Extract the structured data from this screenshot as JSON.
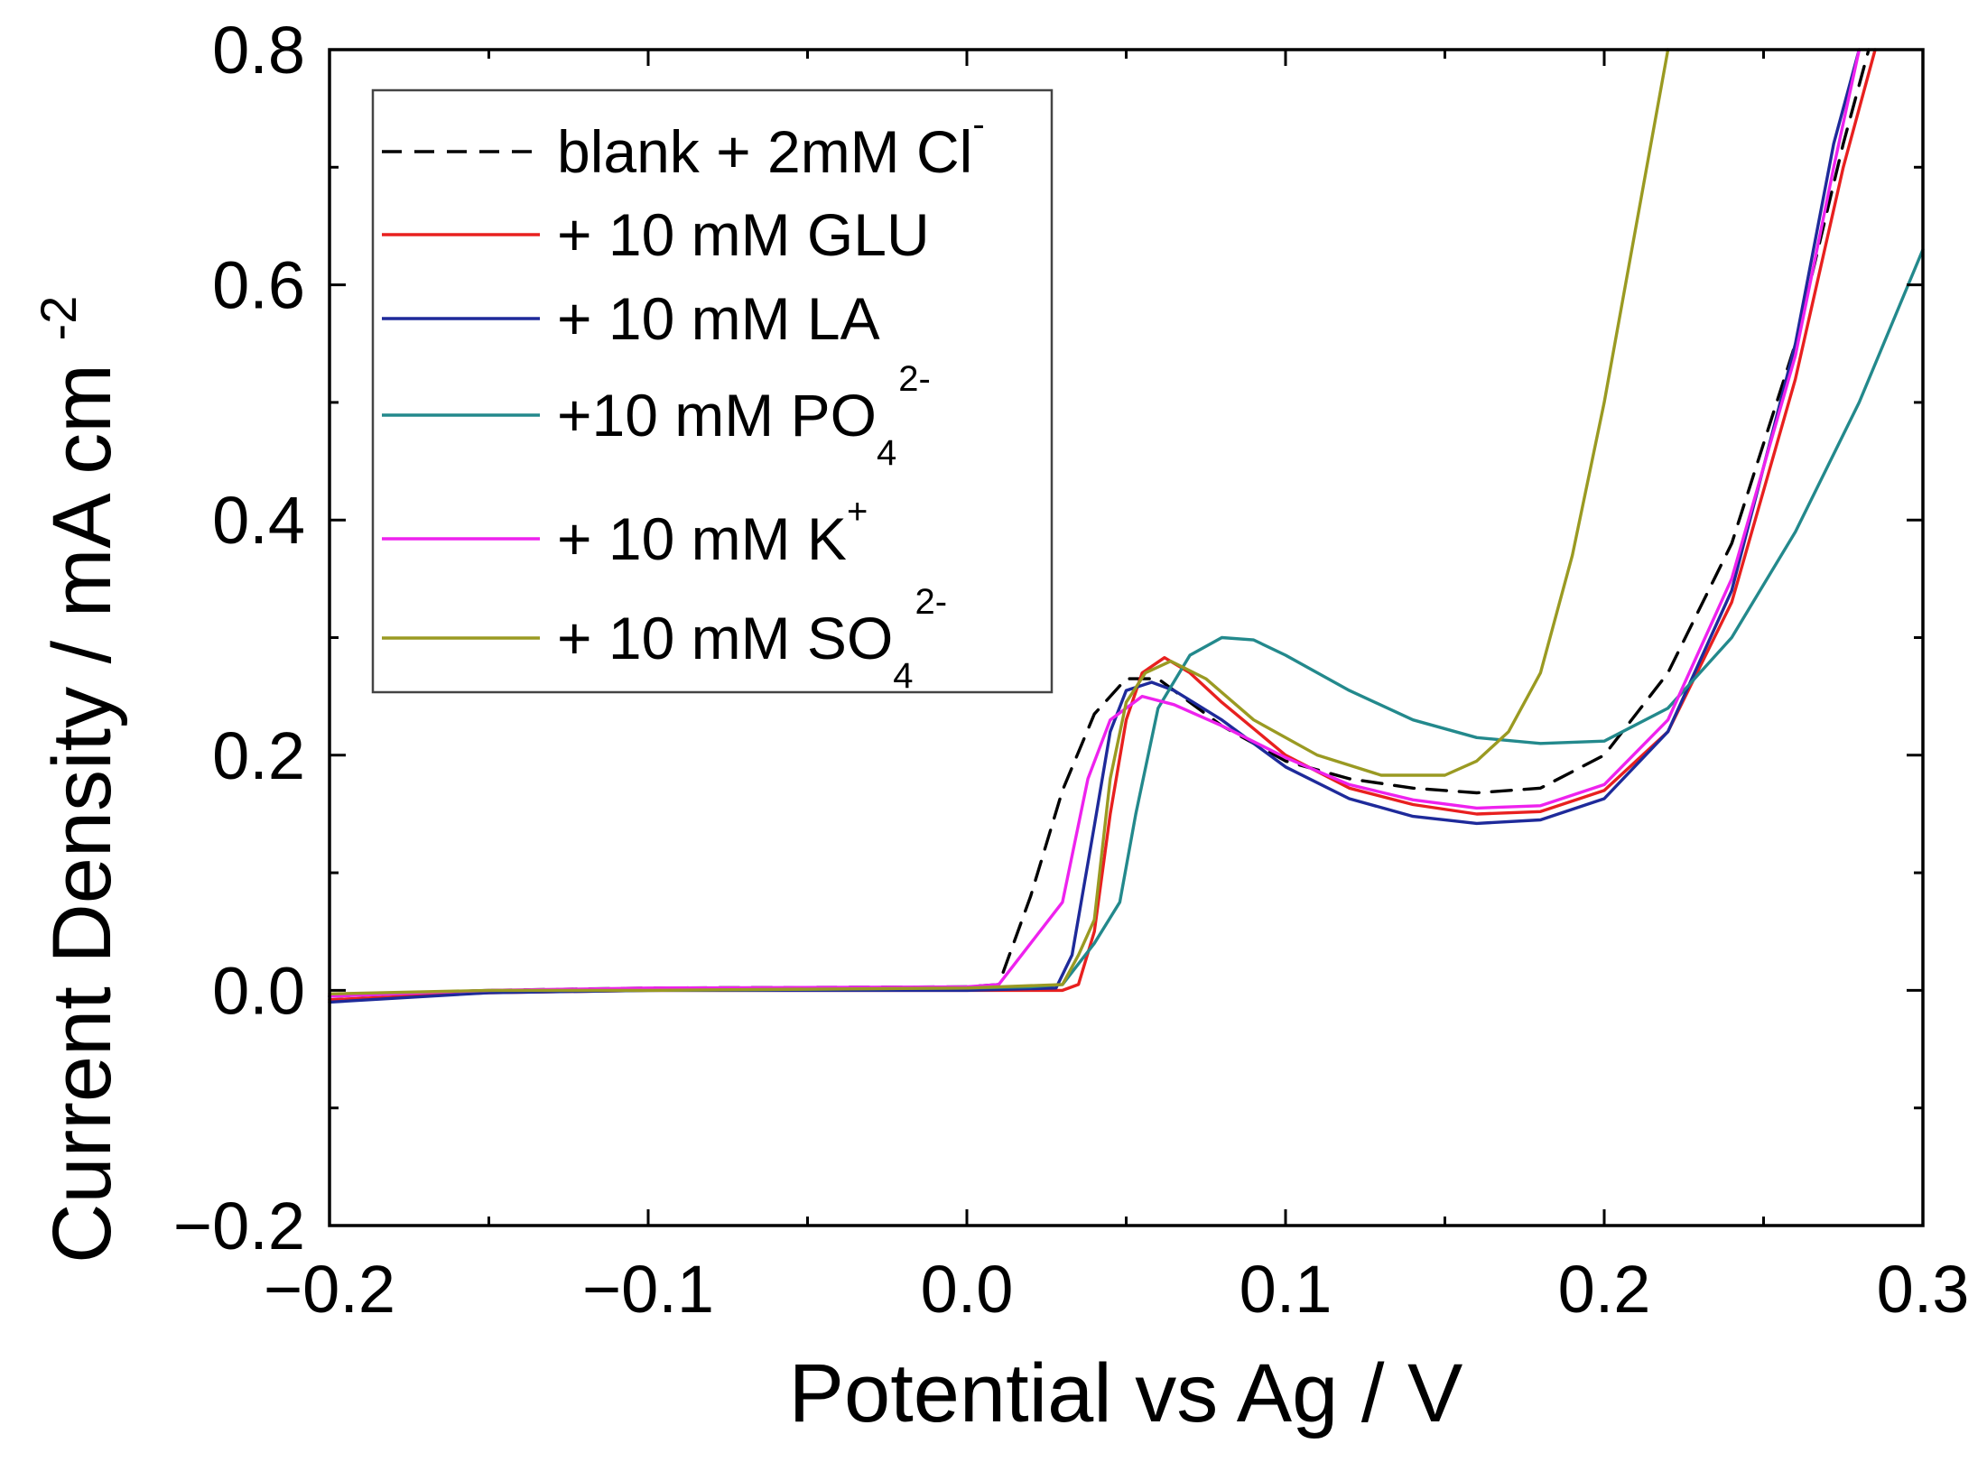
{
  "chart_data": {
    "type": "line",
    "title": "",
    "xlabel": "Potential vs Ag   /   V",
    "ylabel_main": "Current Density   /   mA cm",
    "ylabel_sup": "-2",
    "xlim": [
      -0.2,
      0.3
    ],
    "ylim": [
      -0.2,
      0.8
    ],
    "xticks": [
      -0.2,
      -0.1,
      0.0,
      0.1,
      0.2,
      0.3
    ],
    "xtick_labels": [
      "−0.2",
      "−0.1",
      "0.0",
      "0.1",
      "0.2",
      "0.3"
    ],
    "yticks": [
      -0.2,
      0.0,
      0.2,
      0.4,
      0.6,
      0.8
    ],
    "ytick_labels": [
      "−0.2",
      "0.0",
      "0.2",
      "0.4",
      "0.6",
      "0.8"
    ],
    "grid": false,
    "legend_position": "top-left",
    "series": [
      {
        "name": "blank + 2mM Cl",
        "legend_main": "blank + 2mM Cl",
        "legend_sup": "-",
        "legend_sub": "",
        "color": "#000000",
        "dash": "22,14",
        "points": [
          [
            -0.2,
            -0.005
          ],
          [
            -0.15,
            0.0
          ],
          [
            -0.1,
            0.002
          ],
          [
            0.0,
            0.003
          ],
          [
            0.01,
            0.005
          ],
          [
            0.02,
            0.08
          ],
          [
            0.03,
            0.17
          ],
          [
            0.04,
            0.235
          ],
          [
            0.05,
            0.265
          ],
          [
            0.06,
            0.265
          ],
          [
            0.07,
            0.245
          ],
          [
            0.08,
            0.225
          ],
          [
            0.1,
            0.195
          ],
          [
            0.12,
            0.18
          ],
          [
            0.14,
            0.172
          ],
          [
            0.16,
            0.168
          ],
          [
            0.18,
            0.172
          ],
          [
            0.2,
            0.2
          ],
          [
            0.22,
            0.27
          ],
          [
            0.24,
            0.38
          ],
          [
            0.26,
            0.55
          ],
          [
            0.275,
            0.72
          ],
          [
            0.283,
            0.8
          ]
        ]
      },
      {
        "name": "+ 10 mM GLU",
        "legend_main": "+ 10 mM GLU",
        "legend_sup": "",
        "legend_sub": "",
        "color": "#e8201f",
        "dash": "",
        "points": [
          [
            -0.2,
            -0.008
          ],
          [
            -0.15,
            -0.002
          ],
          [
            -0.1,
            0.0
          ],
          [
            0.0,
            0.0
          ],
          [
            0.03,
            0.0
          ],
          [
            0.035,
            0.005
          ],
          [
            0.04,
            0.05
          ],
          [
            0.045,
            0.15
          ],
          [
            0.05,
            0.23
          ],
          [
            0.055,
            0.27
          ],
          [
            0.062,
            0.283
          ],
          [
            0.07,
            0.27
          ],
          [
            0.08,
            0.245
          ],
          [
            0.1,
            0.2
          ],
          [
            0.12,
            0.172
          ],
          [
            0.14,
            0.158
          ],
          [
            0.16,
            0.15
          ],
          [
            0.18,
            0.152
          ],
          [
            0.2,
            0.17
          ],
          [
            0.22,
            0.22
          ],
          [
            0.24,
            0.33
          ],
          [
            0.26,
            0.52
          ],
          [
            0.275,
            0.7
          ],
          [
            0.285,
            0.8
          ]
        ]
      },
      {
        "name": "+ 10 mM LA",
        "legend_main": "+ 10 mM LA",
        "legend_sup": "",
        "legend_sub": "",
        "color": "#1e2a9a",
        "dash": "",
        "points": [
          [
            -0.2,
            -0.01
          ],
          [
            -0.15,
            -0.002
          ],
          [
            -0.1,
            0.0
          ],
          [
            0.0,
            0.0
          ],
          [
            0.028,
            0.002
          ],
          [
            0.033,
            0.03
          ],
          [
            0.04,
            0.14
          ],
          [
            0.045,
            0.22
          ],
          [
            0.05,
            0.255
          ],
          [
            0.058,
            0.262
          ],
          [
            0.065,
            0.255
          ],
          [
            0.08,
            0.23
          ],
          [
            0.1,
            0.19
          ],
          [
            0.12,
            0.163
          ],
          [
            0.14,
            0.148
          ],
          [
            0.16,
            0.142
          ],
          [
            0.18,
            0.145
          ],
          [
            0.2,
            0.163
          ],
          [
            0.22,
            0.22
          ],
          [
            0.24,
            0.34
          ],
          [
            0.26,
            0.55
          ],
          [
            0.272,
            0.72
          ],
          [
            0.28,
            0.8
          ]
        ]
      },
      {
        "name": "+10 mM PO4 2-",
        "legend_main": "+10 mM PO",
        "legend_sup": "2-",
        "legend_sub": "4",
        "color": "#23898c",
        "dash": "",
        "points": [
          [
            -0.2,
            -0.005
          ],
          [
            -0.15,
            0.0
          ],
          [
            -0.1,
            0.0
          ],
          [
            0.0,
            0.002
          ],
          [
            0.02,
            0.003
          ],
          [
            0.03,
            0.005
          ],
          [
            0.04,
            0.04
          ],
          [
            0.048,
            0.075
          ],
          [
            0.053,
            0.15
          ],
          [
            0.06,
            0.24
          ],
          [
            0.07,
            0.285
          ],
          [
            0.08,
            0.3
          ],
          [
            0.09,
            0.298
          ],
          [
            0.1,
            0.285
          ],
          [
            0.12,
            0.255
          ],
          [
            0.14,
            0.23
          ],
          [
            0.16,
            0.215
          ],
          [
            0.18,
            0.21
          ],
          [
            0.2,
            0.212
          ],
          [
            0.22,
            0.24
          ],
          [
            0.24,
            0.3
          ],
          [
            0.26,
            0.39
          ],
          [
            0.28,
            0.5
          ],
          [
            0.3,
            0.63
          ]
        ]
      },
      {
        "name": "+ 10 mM K+",
        "legend_main": "+ 10 mM K",
        "legend_sup": "+",
        "legend_sub": "",
        "color": "#ee22ee",
        "dash": "",
        "points": [
          [
            -0.2,
            -0.005
          ],
          [
            -0.15,
            0.0
          ],
          [
            -0.1,
            0.002
          ],
          [
            0.0,
            0.003
          ],
          [
            0.01,
            0.005
          ],
          [
            0.02,
            0.04
          ],
          [
            0.03,
            0.075
          ],
          [
            0.038,
            0.18
          ],
          [
            0.045,
            0.23
          ],
          [
            0.055,
            0.25
          ],
          [
            0.065,
            0.243
          ],
          [
            0.08,
            0.225
          ],
          [
            0.1,
            0.198
          ],
          [
            0.12,
            0.175
          ],
          [
            0.14,
            0.162
          ],
          [
            0.16,
            0.155
          ],
          [
            0.18,
            0.157
          ],
          [
            0.2,
            0.175
          ],
          [
            0.22,
            0.23
          ],
          [
            0.24,
            0.35
          ],
          [
            0.26,
            0.54
          ],
          [
            0.272,
            0.7
          ],
          [
            0.28,
            0.8
          ]
        ]
      },
      {
        "name": "+ 10 mM SO4 2-",
        "legend_main": "+ 10 mM SO",
        "legend_sup": "2-",
        "legend_sub": "4",
        "color": "#9a9a22",
        "dash": "",
        "points": [
          [
            -0.2,
            -0.003
          ],
          [
            -0.15,
            0.0
          ],
          [
            -0.1,
            0.0
          ],
          [
            0.0,
            0.002
          ],
          [
            0.03,
            0.005
          ],
          [
            0.035,
            0.03
          ],
          [
            0.04,
            0.06
          ],
          [
            0.045,
            0.18
          ],
          [
            0.05,
            0.245
          ],
          [
            0.056,
            0.27
          ],
          [
            0.064,
            0.28
          ],
          [
            0.075,
            0.265
          ],
          [
            0.09,
            0.23
          ],
          [
            0.11,
            0.2
          ],
          [
            0.13,
            0.183
          ],
          [
            0.15,
            0.183
          ],
          [
            0.16,
            0.195
          ],
          [
            0.17,
            0.22
          ],
          [
            0.18,
            0.27
          ],
          [
            0.19,
            0.37
          ],
          [
            0.2,
            0.5
          ],
          [
            0.21,
            0.65
          ],
          [
            0.22,
            0.8
          ]
        ]
      }
    ]
  }
}
